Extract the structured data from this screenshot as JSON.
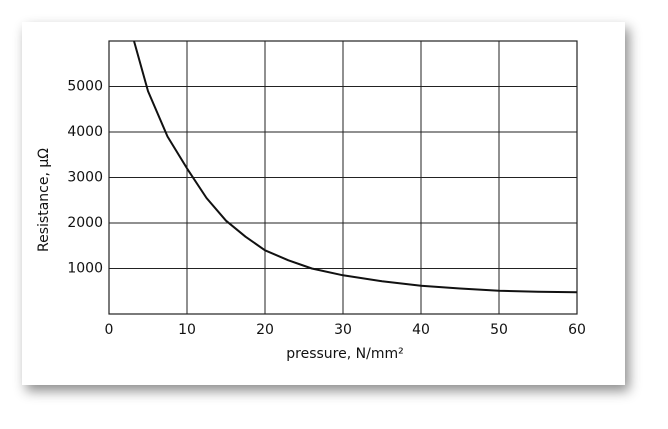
{
  "chart_data": {
    "type": "line",
    "x_label": "pressure, N/mm²",
    "y_label": "Resistance, μΩ",
    "x": [
      3.2,
      5,
      7.5,
      10,
      12.5,
      15,
      17.5,
      20,
      23,
      26,
      30,
      35,
      40,
      45,
      50,
      55,
      60
    ],
    "values": [
      6000,
      4900,
      3900,
      3200,
      2550,
      2050,
      1700,
      1400,
      1180,
      1000,
      850,
      720,
      620,
      560,
      510,
      490,
      480
    ],
    "color": "#111111",
    "xlim": [
      0,
      60
    ],
    "xticks": [
      0,
      10,
      20,
      30,
      40,
      50,
      60
    ],
    "ylim": [
      0,
      6000
    ],
    "yticks": [
      1000,
      2000,
      3000,
      4000,
      5000
    ],
    "grid": true
  }
}
